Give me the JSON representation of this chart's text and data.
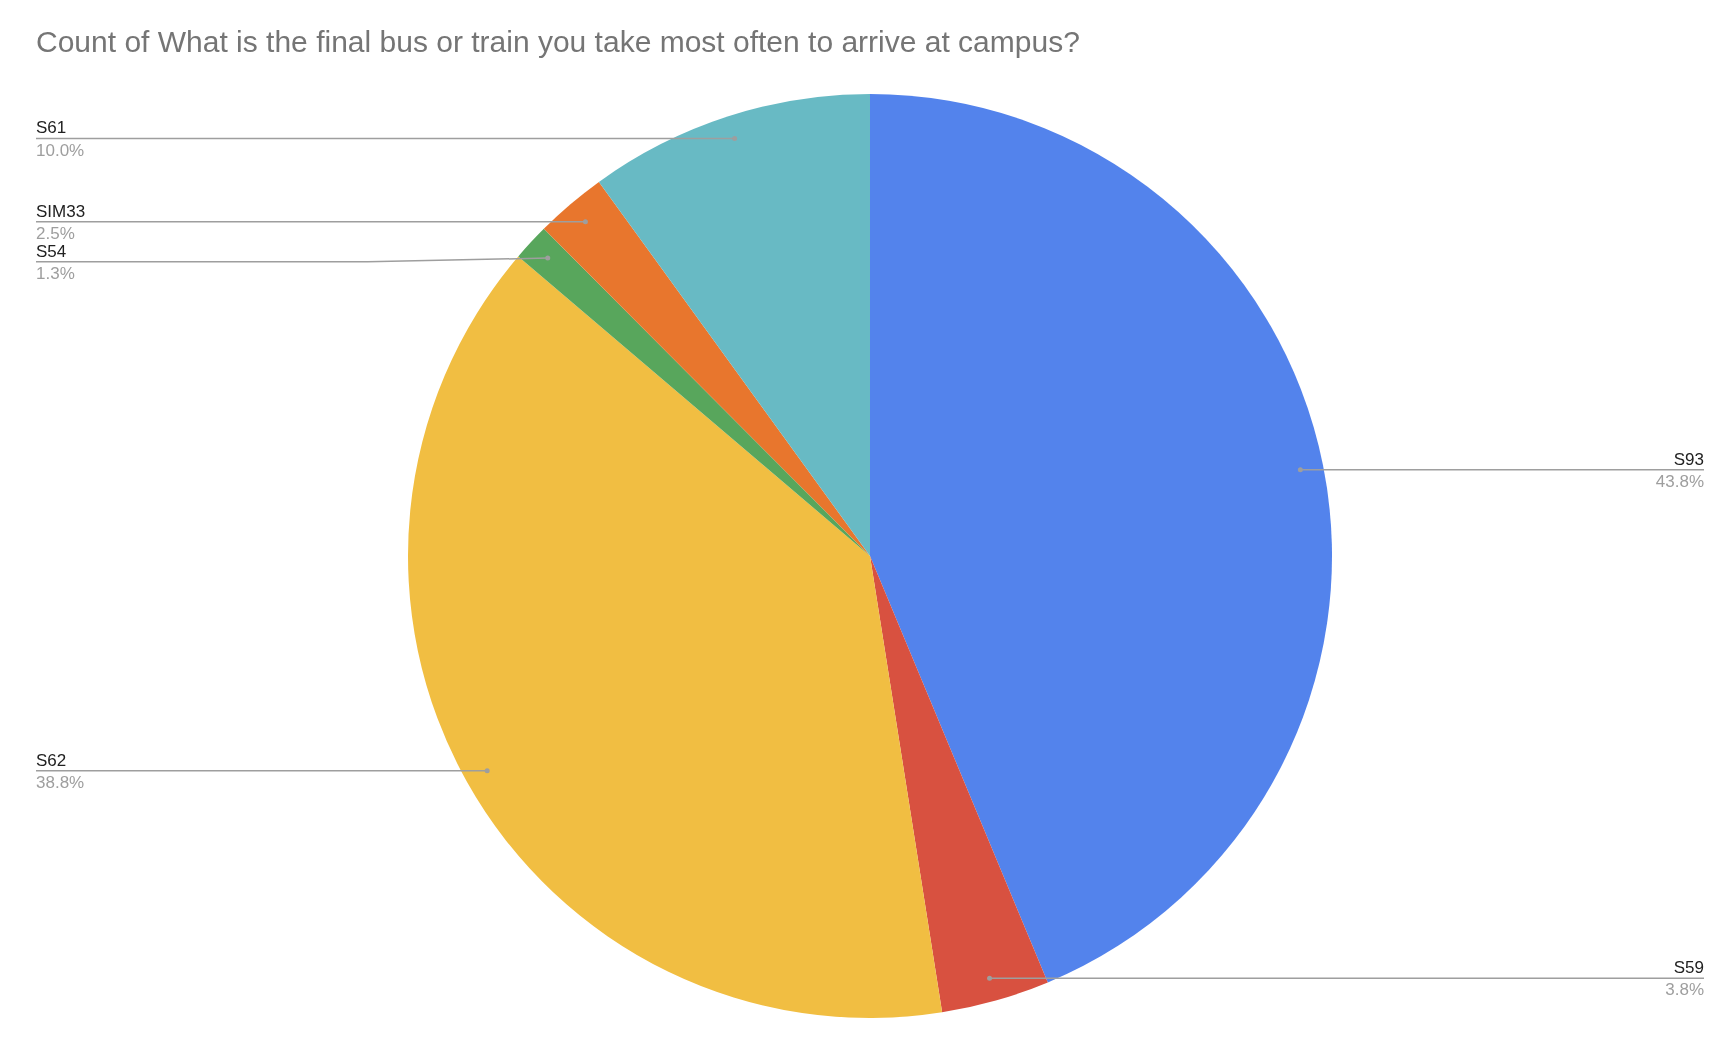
{
  "chart_data": {
    "type": "pie",
    "title": "Count of What is the final bus or train you take most often to arrive at campus?",
    "categories": [
      "S93",
      "S59",
      "S62",
      "S54",
      "SIM33",
      "S61"
    ],
    "values": [
      43.8,
      3.8,
      38.8,
      1.3,
      2.5,
      10.0
    ],
    "colors": [
      "#5383ec",
      "#d85140",
      "#f1be42",
      "#58a65c",
      "#e8762d",
      "#68bac4"
    ],
    "value_labels": [
      "43.8%",
      "3.8%",
      "38.8%",
      "1.3%",
      "2.5%",
      "10.0%"
    ],
    "legend": false
  }
}
